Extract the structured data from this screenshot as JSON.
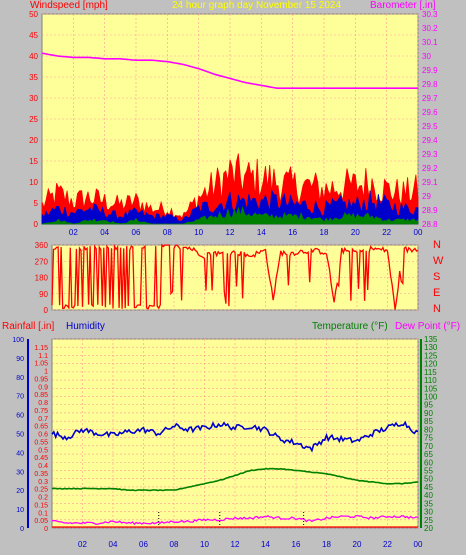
{
  "header": {
    "windspeed_label": "Windspeed [mph]",
    "title": "24 hour graph day   November 15 2024",
    "barometer_label": "Barometer [.in]"
  },
  "panel2": {
    "compass": [
      "N",
      "W",
      "S",
      "E",
      "N"
    ]
  },
  "panel3": {
    "rainfall_label": "Rainfall [.in]",
    "humidity_label": "Humidity",
    "temperature_label": "Temperature (°F)",
    "dewpoint_label": "Dew Point (°F)"
  },
  "colors": {
    "bg": "#c0c0c0",
    "plot_bg": "#ffff99",
    "red": "#ff0000",
    "blue": "#0000cc",
    "green": "#008000",
    "magenta": "#ff00ff",
    "title": "#ffff00"
  },
  "chart_data": [
    {
      "type": "area",
      "title": "24 hour graph day   November 15 2024",
      "ylabel": "Windspeed [mph]",
      "y2label": "Barometer [.in]",
      "x_ticks": [
        "02",
        "04",
        "06",
        "08",
        "10",
        "12",
        "14",
        "16",
        "18",
        "20",
        "22",
        "00"
      ],
      "ylim": [
        0,
        50
      ],
      "y_ticks": [
        0,
        5,
        10,
        15,
        20,
        25,
        30,
        35,
        40,
        45,
        50
      ],
      "y2lim": [
        28.8,
        30.3
      ],
      "y2_ticks": [
        "28.8",
        "28.9",
        "29",
        "29.1",
        "29.2",
        "29.3",
        "29.4",
        "29.5",
        "29.6",
        "29.7",
        "29.8",
        "29.9",
        "30",
        "30.1",
        "30.2",
        "30.3"
      ],
      "grid": true,
      "series": [
        {
          "name": "Windspeed [mph]",
          "color": "#ff0000",
          "style": "filled area, gusts",
          "x": [
            0,
            1,
            2,
            3,
            4,
            5,
            6,
            7,
            8,
            9,
            10,
            11,
            12,
            13,
            14,
            15,
            16,
            17,
            18,
            19,
            20,
            21,
            22,
            23,
            24
          ],
          "values": [
            5,
            8,
            6,
            7,
            6,
            5,
            6,
            4,
            4,
            2,
            7,
            10,
            13,
            12,
            12,
            11,
            10,
            10,
            9,
            10,
            10,
            11,
            9,
            8,
            9
          ]
        },
        {
          "name": "Average wind",
          "color": "#0000cc",
          "style": "filled area",
          "x": [
            0,
            1,
            2,
            3,
            4,
            5,
            6,
            7,
            8,
            9,
            10,
            11,
            12,
            13,
            14,
            15,
            16,
            17,
            18,
            19,
            20,
            21,
            22,
            23,
            24
          ],
          "values": [
            2,
            4,
            3,
            4,
            3,
            2,
            3,
            2,
            2,
            1,
            4,
            5,
            6,
            6,
            6,
            6,
            5,
            5,
            4,
            5,
            5,
            6,
            5,
            4,
            4
          ]
        },
        {
          "name": "Wind minimum",
          "color": "#008000",
          "style": "filled area",
          "x": [
            0,
            1,
            2,
            3,
            4,
            5,
            6,
            7,
            8,
            9,
            10,
            11,
            12,
            13,
            14,
            15,
            16,
            17,
            18,
            19,
            20,
            21,
            22,
            23,
            24
          ],
          "values": [
            0,
            1,
            0,
            1,
            1,
            0,
            1,
            0,
            0,
            0,
            1,
            2,
            3,
            3,
            2,
            2,
            2,
            2,
            1,
            2,
            2,
            2,
            1,
            1,
            1
          ]
        },
        {
          "name": "Barometer [.in]",
          "color": "#ff00ff",
          "axis": "right",
          "x": [
            0,
            1,
            2,
            3,
            4,
            5,
            6,
            7,
            8,
            9,
            10,
            11,
            12,
            13,
            14,
            15,
            16,
            17,
            18,
            19,
            20,
            21,
            22,
            23,
            24
          ],
          "values": [
            30.02,
            30.0,
            29.99,
            29.99,
            29.98,
            29.98,
            29.97,
            29.97,
            29.96,
            29.94,
            29.91,
            29.87,
            29.84,
            29.81,
            29.79,
            29.77,
            29.77,
            29.77,
            29.77,
            29.77,
            29.77,
            29.77,
            29.77,
            29.77,
            29.77
          ]
        }
      ]
    },
    {
      "type": "line",
      "title": "",
      "ylabel": "Wind direction",
      "x_ticks": [
        "02",
        "04",
        "06",
        "08",
        "10",
        "12",
        "14",
        "16",
        "18",
        "20",
        "22",
        "00"
      ],
      "ylim": [
        0,
        360
      ],
      "y_ticks": [
        0,
        90,
        180,
        270,
        360
      ],
      "y2_labels": [
        "N",
        "W",
        "S",
        "E",
        "N"
      ],
      "grid": true,
      "series": [
        {
          "name": "Wind direction",
          "color": "#ff0000",
          "x": [
            0,
            0.5,
            1,
            1.5,
            2,
            2.5,
            3,
            3.5,
            4,
            4.5,
            5,
            5.5,
            6,
            6.5,
            7,
            8,
            9,
            10,
            10.5,
            11,
            12,
            13,
            14,
            14.5,
            15,
            15.5,
            16,
            17,
            18,
            18.5,
            19,
            20,
            21,
            22,
            22.5,
            23,
            23.5,
            24
          ],
          "values": [
            350,
            20,
            340,
            10,
            345,
            350,
            355,
            20,
            350,
            10,
            340,
            20,
            350,
            0,
            355,
            350,
            345,
            300,
            320,
            310,
            320,
            300,
            330,
            60,
            320,
            310,
            320,
            330,
            320,
            40,
            330,
            320,
            340,
            330,
            0,
            340,
            330,
            340
          ]
        }
      ]
    },
    {
      "type": "line",
      "title": "",
      "x_ticks": [
        "02",
        "04",
        "06",
        "08",
        "10",
        "12",
        "14",
        "16",
        "18",
        "20",
        "22",
        "00"
      ],
      "ylabel_left_outer": "Rainfall [.in]",
      "ylabel_left_inner": "Humidity",
      "ylabel_right": "Temperature (°F)",
      "ylabel_right2": "Dew Point (°F)",
      "humidity_ylim": [
        0,
        100
      ],
      "humidity_ticks": [
        0,
        10,
        20,
        30,
        40,
        50,
        60,
        70,
        80,
        90,
        100
      ],
      "rain_ylim": [
        0,
        1.2
      ],
      "rain_ticks": [
        "0",
        "0.05",
        "0.1",
        "0.15",
        "0.2",
        "0.25",
        "0.3",
        "0.35",
        "0.4",
        "0.45",
        "0.5",
        "0.55",
        "0.6",
        "0.65",
        "0.7",
        "0.75",
        "0.8",
        "0.85",
        "0.9",
        "0.95",
        "1",
        "1.05",
        "1.1",
        "1.15"
      ],
      "temp_ylim": [
        20,
        135
      ],
      "temp_ticks": [
        20,
        25,
        30,
        35,
        40,
        45,
        50,
        55,
        60,
        65,
        70,
        75,
        80,
        85,
        90,
        95,
        100,
        105,
        110,
        115,
        120,
        125,
        130,
        135
      ],
      "grid": true,
      "series": [
        {
          "name": "Humidity",
          "color": "#0000cc",
          "axis": "humidity",
          "x": [
            0,
            1,
            2,
            3,
            4,
            5,
            6,
            7,
            8,
            9,
            10,
            11,
            12,
            13,
            14,
            15,
            16,
            17,
            18,
            19,
            20,
            21,
            22,
            23,
            24
          ],
          "values": [
            50,
            48,
            52,
            50,
            49,
            51,
            52,
            50,
            54,
            52,
            53,
            55,
            53,
            54,
            52,
            47,
            45,
            42,
            48,
            47,
            46,
            50,
            53,
            56,
            50
          ]
        },
        {
          "name": "Temperature (°F)",
          "color": "#008000",
          "axis": "temp",
          "x": [
            0,
            1,
            2,
            3,
            4,
            5,
            6,
            7,
            8,
            9,
            10,
            11,
            12,
            13,
            14,
            15,
            16,
            17,
            18,
            19,
            20,
            21,
            22,
            23,
            24
          ],
          "values": [
            44,
            44,
            44,
            44,
            44,
            43,
            43,
            43,
            43,
            45,
            47,
            49,
            52,
            55,
            56,
            56,
            55,
            54,
            53,
            51,
            49,
            48,
            47,
            47,
            48
          ]
        },
        {
          "name": "Dew Point (°F)",
          "color": "#ff00ff",
          "axis": "temp",
          "x": [
            0,
            1,
            2,
            3,
            4,
            5,
            6,
            7,
            8,
            9,
            10,
            11,
            12,
            13,
            14,
            15,
            16,
            17,
            18,
            19,
            20,
            21,
            22,
            23,
            24
          ],
          "values": [
            24,
            23,
            23,
            23,
            24,
            23,
            23,
            23,
            24,
            24,
            25,
            25,
            26,
            26,
            27,
            26,
            26,
            24,
            26,
            27,
            27,
            26,
            27,
            27,
            26
          ]
        },
        {
          "name": "Rainfall [.in]",
          "color": "#ff0000",
          "axis": "rain",
          "x": [
            0,
            24
          ],
          "values": [
            0,
            0
          ]
        }
      ]
    }
  ]
}
